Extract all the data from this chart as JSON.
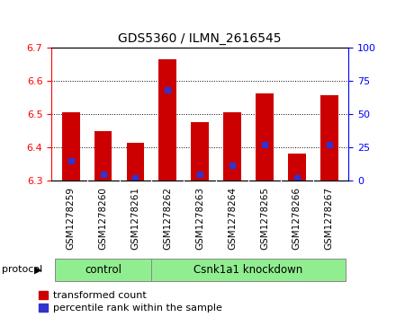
{
  "title": "GDS5360 / ILMN_2616545",
  "samples": [
    "GSM1278259",
    "GSM1278260",
    "GSM1278261",
    "GSM1278262",
    "GSM1278263",
    "GSM1278264",
    "GSM1278265",
    "GSM1278266",
    "GSM1278267"
  ],
  "transformed_counts": [
    6.505,
    6.45,
    6.413,
    6.663,
    6.477,
    6.505,
    6.563,
    6.383,
    6.557
  ],
  "percentile_ranks": [
    15,
    5,
    2,
    68,
    5,
    12,
    27,
    2,
    27
  ],
  "ymin": 6.3,
  "ymax": 6.7,
  "yticks": [
    6.3,
    6.4,
    6.5,
    6.6,
    6.7
  ],
  "right_yticks": [
    0,
    25,
    50,
    75,
    100
  ],
  "bar_color": "#cc0000",
  "percentile_color": "#3333cc",
  "bar_width": 0.55,
  "protocol_label": "protocol",
  "control_label": "control",
  "knockdown_label": "Csnk1a1 knockdown",
  "control_count": 3,
  "green_color": "#90ee90",
  "gray_color": "#cccccc",
  "legend_items": [
    {
      "label": "transformed count",
      "color": "#cc0000"
    },
    {
      "label": "percentile rank within the sample",
      "color": "#3333cc"
    }
  ],
  "plot_bg_color": "#ffffff",
  "tick_bg_color": "#cccccc"
}
